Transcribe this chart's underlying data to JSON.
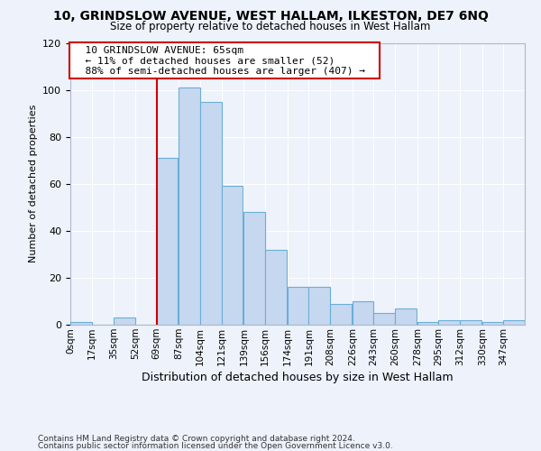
{
  "title1": "10, GRINDSLOW AVENUE, WEST HALLAM, ILKESTON, DE7 6NQ",
  "title2": "Size of property relative to detached houses in West Hallam",
  "xlabel": "Distribution of detached houses by size in West Hallam",
  "ylabel": "Number of detached properties",
  "footnote1": "Contains HM Land Registry data © Crown copyright and database right 2024.",
  "footnote2": "Contains public sector information licensed under the Open Government Licence v3.0.",
  "annotation_title": "10 GRINDSLOW AVENUE: 65sqm",
  "annotation_line1": "← 11% of detached houses are smaller (52)",
  "annotation_line2": "88% of semi-detached houses are larger (407) →",
  "bin_labels": [
    "0sqm",
    "17sqm",
    "35sqm",
    "52sqm",
    "69sqm",
    "87sqm",
    "104sqm",
    "121sqm",
    "139sqm",
    "156sqm",
    "174sqm",
    "191sqm",
    "208sqm",
    "226sqm",
    "243sqm",
    "260sqm",
    "278sqm",
    "295sqm",
    "312sqm",
    "330sqm",
    "347sqm"
  ],
  "bar_heights": [
    1,
    0,
    3,
    0,
    71,
    101,
    95,
    59,
    48,
    32,
    16,
    16,
    9,
    10,
    5,
    7,
    1,
    2,
    2,
    1,
    2
  ],
  "bar_color": "#c5d8f0",
  "bar_edge_color": "#6baed6",
  "redline_color": "#cc0000",
  "redline_x": 69,
  "ylim": [
    0,
    120
  ],
  "yticks": [
    0,
    20,
    40,
    60,
    80,
    100,
    120
  ],
  "bg_color": "#edf2fb",
  "grid_color": "#ffffff",
  "annotation_box_facecolor": "#ffffff",
  "annotation_box_edgecolor": "#cc0000"
}
